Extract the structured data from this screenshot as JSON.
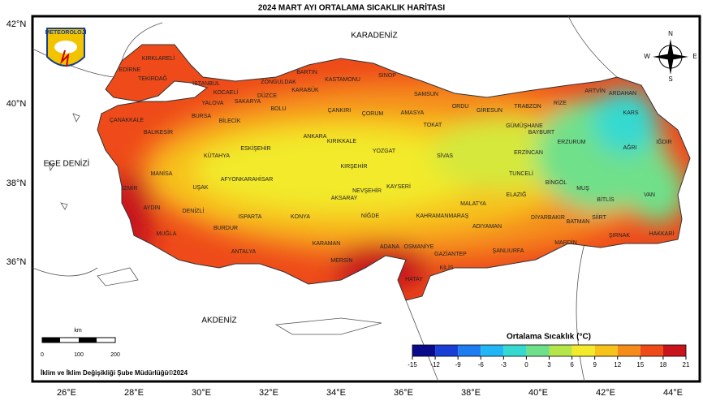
{
  "map": {
    "title": "2024 MART AYI ORTALAMA SICAKLIK HARİTASI",
    "logo": "METEOROLOJİ",
    "compass": [
      "N",
      "E",
      "S",
      "W"
    ],
    "lat_labels": [
      "42°N",
      "40°N",
      "38°N",
      "36°N"
    ],
    "lon_labels": [
      "26°E",
      "28°E",
      "30°E",
      "32°E",
      "34°E",
      "36°E",
      "38°E",
      "40°E",
      "42°E",
      "44°E"
    ],
    "seas": [
      "KARADENİZ",
      "EGE DENİZİ",
      "AKDENİZ"
    ],
    "provinces": [
      "KIRKLARELİ",
      "EDİRNE",
      "TEKİRDAĞ",
      "İSTANBUL",
      "KOCAELİ",
      "SAKARYA",
      "ZONGULDAK",
      "BARTIN",
      "KARABÜK",
      "KASTAMONU",
      "SİNOP",
      "SAMSUN",
      "DÜZCE",
      "BOLU",
      "ÇANKIRI",
      "ÇORUM",
      "AMASYA",
      "ORDU",
      "GİRESUN",
      "TRABZON",
      "RİZE",
      "ARTVİN",
      "ARDAHAN",
      "KARS",
      "GÜMÜŞHANE",
      "BAYBURT",
      "TOKAT",
      "ERZURUM",
      "AĞRI",
      "IĞDIR",
      "ÇANAKKALE",
      "BALIKESİR",
      "BURSA",
      "BİLECİK",
      "YALOVA",
      "ESKİŞEHİR",
      "ANKARA",
      "KIRIKKALE",
      "YOZGAT",
      "SİVAS",
      "ERZİNCAN",
      "KÜTAHYA",
      "MANİSA",
      "İZMİR",
      "UŞAK",
      "AFYONKARAHİSAR",
      "KIRŞEHİR",
      "NEVŞEHİR",
      "AKSARAY",
      "KAYSERİ",
      "TUNCELİ",
      "BİNGÖL",
      "MUŞ",
      "BİTLİS",
      "VAN",
      "ELAZIĞ",
      "MALATYA",
      "AYDIN",
      "DENİZLİ",
      "ISPARTA",
      "KONYA",
      "NİĞDE",
      "KAHRAMANMARAŞ",
      "ADIYAMAN",
      "DİYARBAKIR",
      "BATMAN",
      "SİİRT",
      "MUĞLA",
      "BURDUR",
      "ŞIRNAK",
      "HAKKARİ",
      "KARAMAN",
      "MARDİN",
      "ANTALYA",
      "ADANA",
      "OSMANİYE",
      "GAZİANTEP",
      "ŞANLIURFA",
      "MERSİN",
      "KİLİS",
      "HATAY"
    ],
    "scale_bar": {
      "unit": "km",
      "ticks": [
        0,
        100,
        200
      ]
    },
    "legend": {
      "title": "Ortalama Sıcaklık (°C)",
      "ticks": [
        -15,
        -12,
        -9,
        -6,
        -3,
        0,
        3,
        6,
        9,
        12,
        15,
        18,
        21
      ],
      "colors": [
        "#0a0a8c",
        "#1a3fd6",
        "#1f7cf0",
        "#22b6f5",
        "#35d9d0",
        "#6fe08a",
        "#b4e64a",
        "#f2ea2a",
        "#f7c21a",
        "#f58c1a",
        "#ee4a1a",
        "#c8141a"
      ]
    },
    "footer": "İklim ve İklim Değişikliği Şube Müdürlüğü©2024"
  }
}
